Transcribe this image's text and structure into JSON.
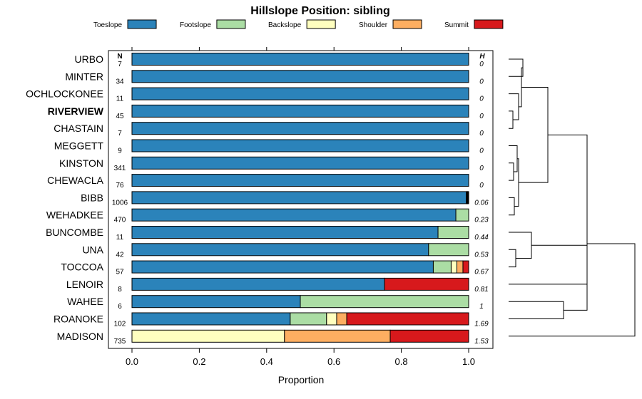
{
  "chart_data": {
    "type": "bar",
    "orientation": "horizontal",
    "stacked": true,
    "title": "Hillslope Position: sibling",
    "xlabel": "Proportion",
    "xlim": [
      0,
      1
    ],
    "xticks": [
      "0.0",
      "0.2",
      "0.4",
      "0.6",
      "0.8",
      "1.0"
    ],
    "legend_placement": "top",
    "n_header": "N",
    "h_header": "H",
    "highlight_category": "RIVERVIEW",
    "series": [
      {
        "name": "Toeslope",
        "color": "#2b83ba"
      },
      {
        "name": "Footslope",
        "color": "#abdda4"
      },
      {
        "name": "Backslope",
        "color": "#ffffbf"
      },
      {
        "name": "Shoulder",
        "color": "#fdae61"
      },
      {
        "name": "Summit",
        "color": "#d7191c"
      }
    ],
    "categories": [
      "URBO",
      "MINTER",
      "OCHLOCKONEE",
      "RIVERVIEW",
      "CHASTAIN",
      "MEGGETT",
      "KINSTON",
      "CHEWACLA",
      "BIBB",
      "WEHADKEE",
      "BUNCOMBE",
      "UNA",
      "TOCCOA",
      "LENOIR",
      "WAHEE",
      "ROANOKE",
      "MADISON"
    ],
    "n": [
      "7",
      "34",
      "11",
      "45",
      "7",
      "9",
      "341",
      "76",
      "1006",
      "470",
      "11",
      "42",
      "57",
      "8",
      "6",
      "102",
      "735"
    ],
    "h": [
      "0",
      "0",
      "0",
      "0",
      "0",
      "0",
      "0",
      "0",
      "0.06",
      "0.23",
      "0.44",
      "0.53",
      "0.67",
      "0.81",
      "1",
      "1.69",
      "1.53"
    ],
    "values": [
      [
        1,
        0,
        0,
        0,
        0
      ],
      [
        1,
        0,
        0,
        0,
        0
      ],
      [
        1,
        0,
        0,
        0,
        0
      ],
      [
        1,
        0,
        0,
        0,
        0
      ],
      [
        1,
        0,
        0,
        0,
        0
      ],
      [
        1,
        0,
        0,
        0,
        0
      ],
      [
        1,
        0,
        0,
        0,
        0
      ],
      [
        1,
        0,
        0,
        0,
        0
      ],
      [
        0.993,
        0.002,
        0.002,
        0.001,
        0.002
      ],
      [
        0.962,
        0.038,
        0,
        0,
        0
      ],
      [
        0.909,
        0.091,
        0,
        0,
        0
      ],
      [
        0.881,
        0.119,
        0,
        0,
        0
      ],
      [
        0.895,
        0.053,
        0.017,
        0.018,
        0.017
      ],
      [
        0.75,
        0,
        0,
        0,
        0.25
      ],
      [
        0.5,
        0.5,
        0,
        0,
        0
      ],
      [
        0.47,
        0.108,
        0.03,
        0.03,
        0.362
      ],
      [
        0,
        0,
        0.453,
        0.314,
        0.233
      ]
    ]
  }
}
